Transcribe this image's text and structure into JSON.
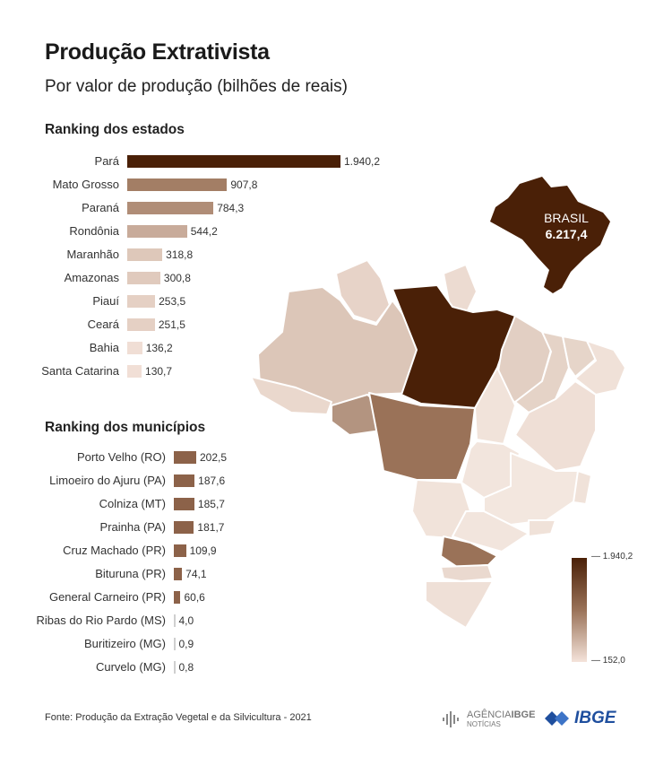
{
  "title": "Produção Extrativista",
  "subtitle": "Por valor de produção (bilhões de reais)",
  "footer": "Fonte: Produção da Extração Vegetal e da Silvicultura - 2021",
  "brasil": {
    "label": "BRASIL",
    "value": "6.217,4"
  },
  "legend": {
    "max_label": "1.940,2",
    "min_label": "152,0"
  },
  "logos": {
    "agencia_main": "AGÊNCIA",
    "agencia_bold": "IBGE",
    "agencia_sub": "NOTÍCIAS",
    "ibge": "IBGE"
  },
  "colors": {
    "dark": "#4a2007",
    "mid": "#9a7258",
    "light": "#f4e3da",
    "municipio": "#8c6249"
  },
  "chart_data": [
    {
      "type": "bar",
      "orientation": "horizontal",
      "title": "Ranking dos estados",
      "categories": [
        "Pará",
        "Mato Grosso",
        "Paraná",
        "Rondônia",
        "Maranhão",
        "Amazonas",
        "Piauí",
        "Ceará",
        "Bahia",
        "Santa Catarina"
      ],
      "values": [
        1940.2,
        907.8,
        784.3,
        544.2,
        318.8,
        300.8,
        253.5,
        251.5,
        136.2,
        130.7
      ],
      "value_labels": [
        "1.940,2",
        "907,8",
        "784,3",
        "544,2",
        "318,8",
        "300,8",
        "253,5",
        "251,5",
        "136,2",
        "130,7"
      ]
    },
    {
      "type": "bar",
      "orientation": "horizontal",
      "title": "Ranking dos municípios",
      "categories": [
        "Porto Velho (RO)",
        "Limoeiro do Ajuru (PA)",
        "Colniza (MT)",
        "Prainha (PA)",
        "Cruz Machado (PR)",
        "Bituruna (PR)",
        "General Carneiro (PR)",
        "Ribas do Rio Pardo (MS)",
        "Buritizeiro (MG)",
        "Curvelo (MG)"
      ],
      "values": [
        202.5,
        187.6,
        185.7,
        181.7,
        109.9,
        74.1,
        60.6,
        4.0,
        0.9,
        0.8
      ],
      "value_labels": [
        "202,5",
        "187,6",
        "185,7",
        "181,7",
        "109,9",
        "74,1",
        "60,6",
        "4,0",
        "0,9",
        "0,8"
      ]
    },
    {
      "type": "heatmap",
      "map": "Brazil by state",
      "states": [
        {
          "name": "Pará",
          "value": 1940.2
        },
        {
          "name": "Mato Grosso",
          "value": 907.8
        },
        {
          "name": "Paraná",
          "value": 784.3
        },
        {
          "name": "Rondônia",
          "value": 544.2
        },
        {
          "name": "Maranhão",
          "value": 318.8
        },
        {
          "name": "Amazonas",
          "value": 300.8
        },
        {
          "name": "Piauí",
          "value": 253.5
        },
        {
          "name": "Ceará",
          "value": 251.5
        },
        {
          "name": "Bahia",
          "value": 136.2
        },
        {
          "name": "Santa Catarina",
          "value": 130.7
        }
      ],
      "scale_min": 152.0,
      "scale_max": 1940.2
    }
  ]
}
